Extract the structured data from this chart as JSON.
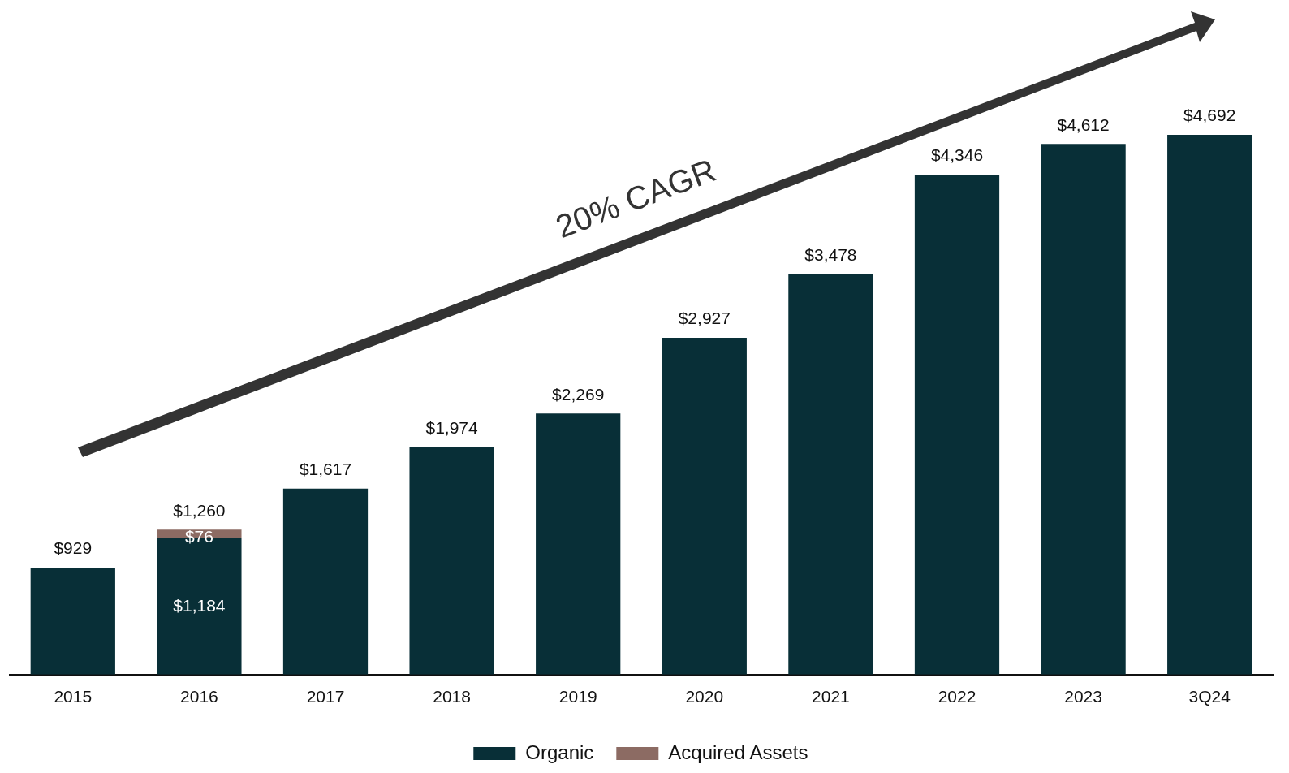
{
  "chart_data": {
    "type": "bar",
    "stacked": true,
    "categories": [
      "2015",
      "2016",
      "2017",
      "2018",
      "2019",
      "2020",
      "2021",
      "2022",
      "2023",
      "3Q24"
    ],
    "series": [
      {
        "name": "Organic",
        "color": "#082f37",
        "values": [
          929,
          1184,
          1617,
          1974,
          2269,
          2927,
          3478,
          4346,
          4612,
          4692
        ],
        "value_labels": [
          null,
          "$1,184",
          null,
          null,
          null,
          null,
          null,
          null,
          null,
          null
        ]
      },
      {
        "name": "Acquired Assets",
        "color": "#8c6b63",
        "values": [
          null,
          76,
          null,
          null,
          null,
          null,
          null,
          null,
          null,
          null
        ],
        "value_labels": [
          null,
          "$76",
          null,
          null,
          null,
          null,
          null,
          null,
          null,
          null
        ]
      }
    ],
    "totals": [
      "$929",
      "$1,260",
      "$1,617",
      "$1,974",
      "$2,269",
      "$2,927",
      "$3,478",
      "$4,346",
      "$4,612",
      "$4,692"
    ],
    "annotations": [
      "20% CAGR"
    ],
    "legend": "bottom",
    "grid": false
  }
}
